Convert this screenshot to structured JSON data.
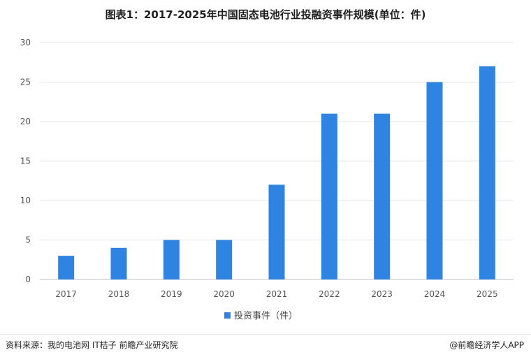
{
  "title": "图表1：2017-2025年中国固态电池行业投融资事件规模(单位：件)",
  "chart_data": {
    "type": "bar",
    "categories": [
      "2017",
      "2018",
      "2019",
      "2020",
      "2021",
      "2022",
      "2023",
      "2024",
      "2025"
    ],
    "series": [
      {
        "name": "投资事件（件）",
        "values": [
          3,
          4,
          5,
          5,
          12,
          21,
          21,
          25,
          27
        ],
        "color": "#2e84e0"
      }
    ],
    "ylim": [
      0,
      30
    ],
    "yticks": [
      0,
      5,
      10,
      15,
      20,
      25,
      30
    ],
    "grid": true,
    "legend_position": "bottom"
  },
  "footer": {
    "source": "资料来源：我的电池网 IT桔子 前瞻产业研究院",
    "credit": "@前瞻经济学人APP"
  }
}
